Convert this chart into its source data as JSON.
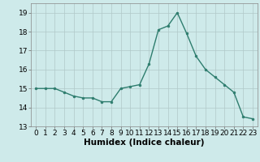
{
  "x": [
    0,
    1,
    2,
    3,
    4,
    5,
    6,
    7,
    8,
    9,
    10,
    11,
    12,
    13,
    14,
    15,
    16,
    17,
    18,
    19,
    20,
    21,
    22,
    23
  ],
  "y": [
    15.0,
    15.0,
    15.0,
    14.8,
    14.6,
    14.5,
    14.5,
    14.3,
    14.3,
    15.0,
    15.1,
    15.2,
    16.3,
    18.1,
    18.3,
    19.0,
    17.9,
    16.7,
    16.0,
    15.6,
    15.2,
    14.8,
    13.5,
    13.4
  ],
  "line_color": "#2e7d6e",
  "marker": "o",
  "marker_size": 2,
  "bg_color": "#ceeaea",
  "grid_color_major": "#b0c8c8",
  "grid_color_minor": "#c8e0e0",
  "xlabel": "Humidex (Indice chaleur)",
  "xlim": [
    -0.5,
    23.5
  ],
  "ylim": [
    13,
    19.5
  ],
  "yticks": [
    13,
    14,
    15,
    16,
    17,
    18,
    19
  ],
  "xticks": [
    0,
    1,
    2,
    3,
    4,
    5,
    6,
    7,
    8,
    9,
    10,
    11,
    12,
    13,
    14,
    15,
    16,
    17,
    18,
    19,
    20,
    21,
    22,
    23
  ],
  "tick_fontsize": 6.5,
  "label_fontsize": 7.5
}
